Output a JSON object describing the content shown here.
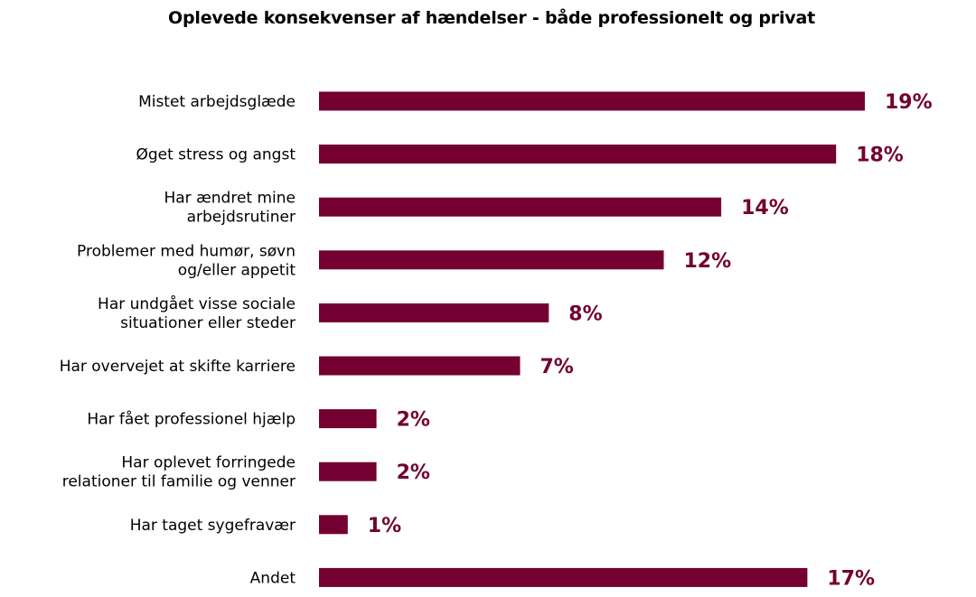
{
  "chart_data": {
    "type": "bar",
    "orientation": "horizontal",
    "title": "Oplevede konsekvenser af hændelser - både professionelt og privat",
    "categories": [
      "Mistet arbejdsglæde",
      "Øget stress og angst",
      "Har ændret mine arbejdsrutiner",
      "Problemer med humør, søvn og/eller appetit",
      "Har undgået visse sociale situationer eller steder",
      "Har overvejet at skifte karriere",
      "Har fået professionel hjælp",
      "Har oplevet forringede relationer til familie og venner",
      "Har  taget sygefravær",
      "Andet"
    ],
    "category_lines": [
      [
        "Mistet arbejdsglæde"
      ],
      [
        "Øget stress og angst"
      ],
      [
        "Har ændret mine",
        "arbejdsrutiner"
      ],
      [
        "Problemer med humør, søvn",
        "og/eller appetit"
      ],
      [
        "Har undgået visse sociale",
        "situationer eller steder"
      ],
      [
        "Har overvejet at skifte karriere"
      ],
      [
        "Har fået professionel hjælp"
      ],
      [
        "Har oplevet forringede",
        "relationer til familie og venner"
      ],
      [
        "Har  taget sygefravær"
      ],
      [
        "Andet"
      ]
    ],
    "values": [
      19,
      18,
      14,
      12,
      8,
      7,
      2,
      2,
      1,
      17
    ],
    "value_labels": [
      "19%",
      "18%",
      "14%",
      "12%",
      "8%",
      "7%",
      "2%",
      "2%",
      "1%",
      "17%"
    ],
    "unit": "%",
    "xlim": [
      0,
      19
    ],
    "grid": false,
    "legend": "none",
    "colors": {
      "bar": "#730030",
      "value_label": "#730030",
      "category_label": "#000000"
    }
  }
}
